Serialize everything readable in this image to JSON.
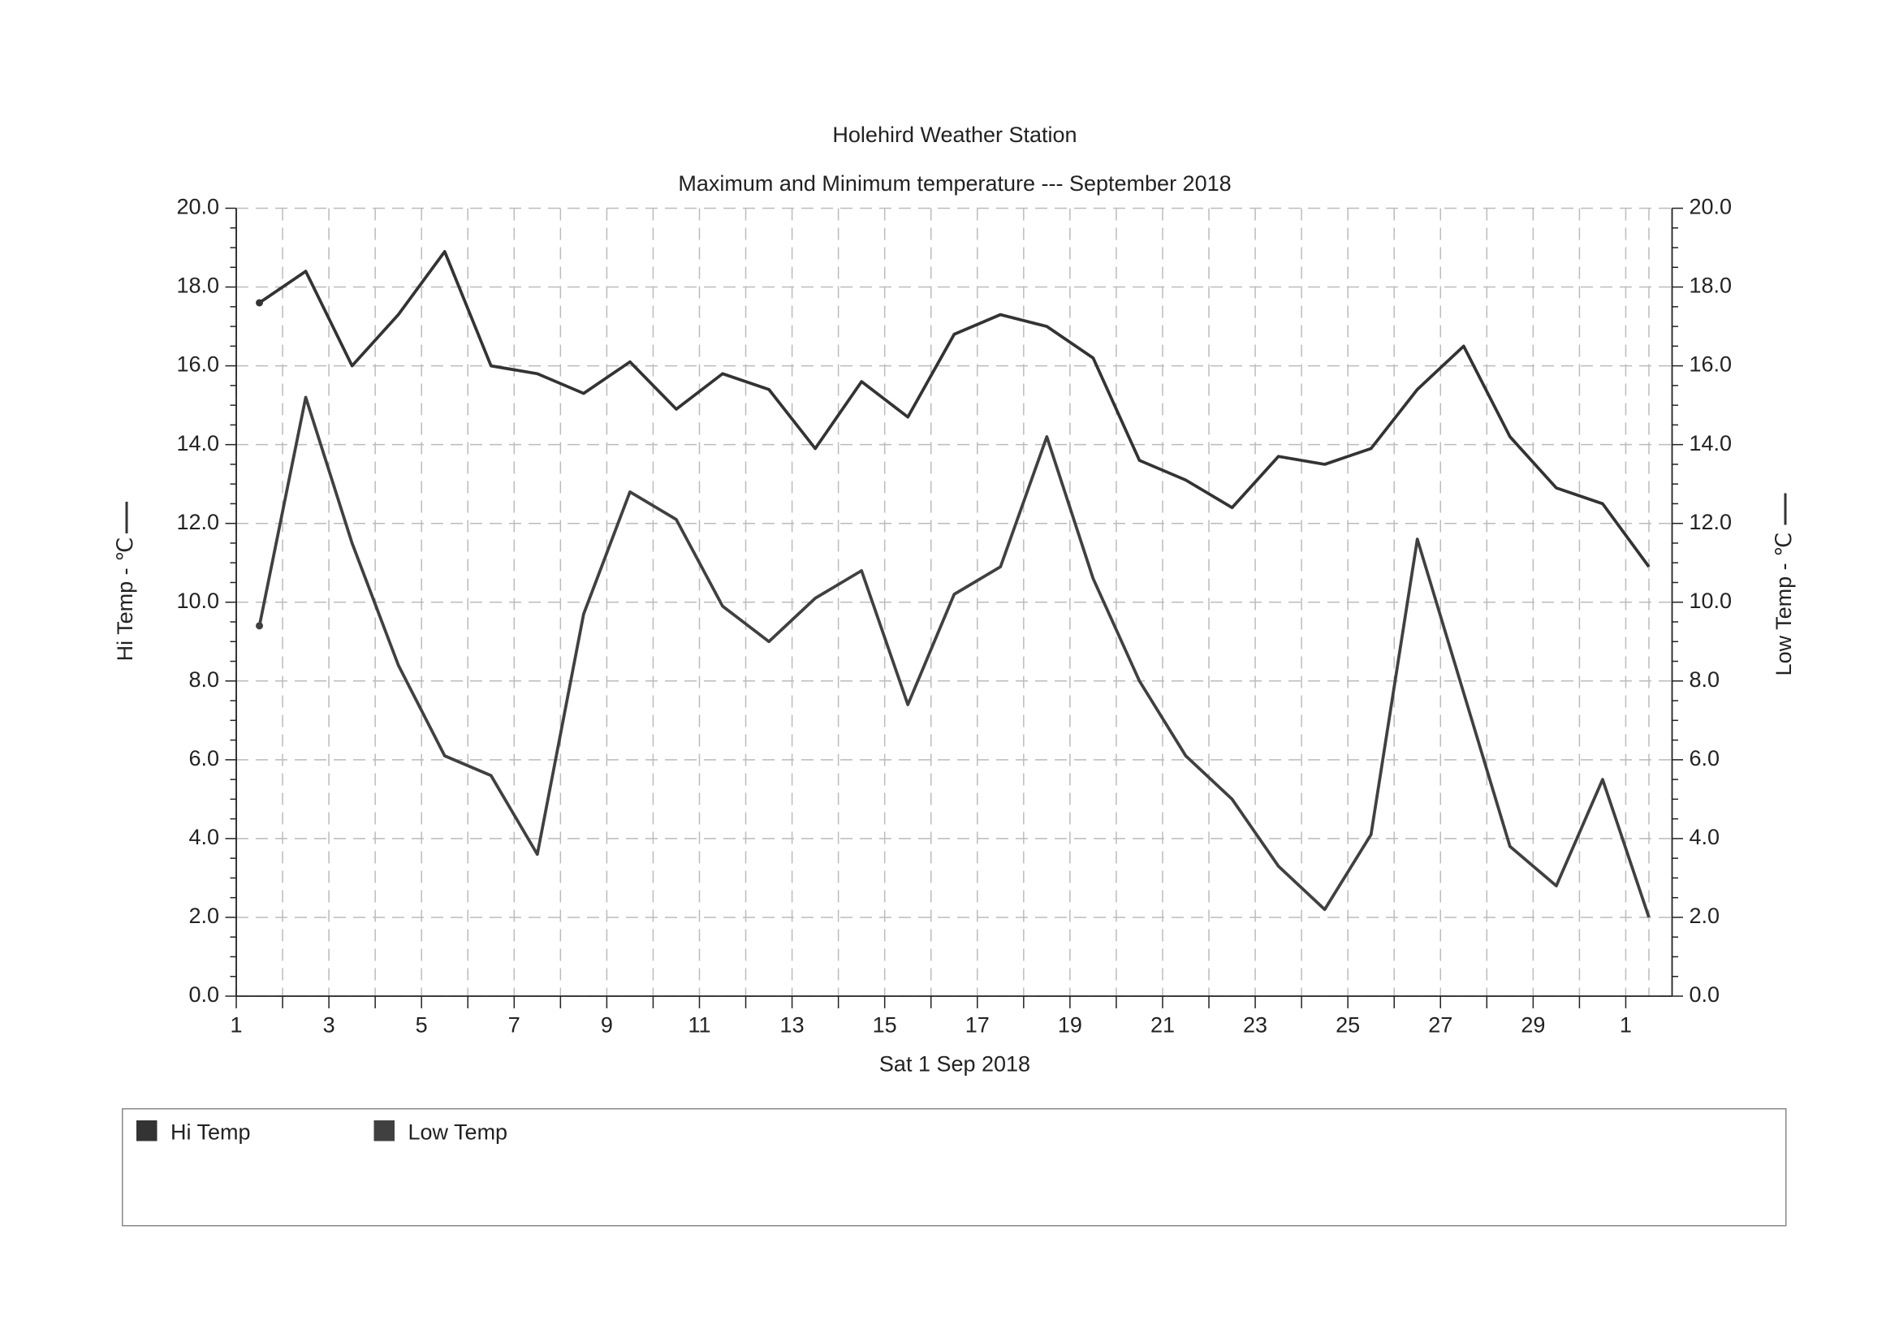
{
  "chart_data": {
    "type": "line",
    "title": "Holehird Weather Station",
    "subtitle": "Maximum and Minimum temperature --- September 2018",
    "x_label": "Sat 1 Sep 2018",
    "y_label": "Hi Temp - ℃",
    "y2_label": "Low Temp - ℃",
    "x": [
      1.5,
      2.5,
      3.5,
      4.5,
      5.5,
      6.5,
      7.5,
      8.5,
      9.5,
      10.5,
      11.5,
      12.5,
      13.5,
      14.5,
      15.5,
      16.5,
      17.5,
      18.5,
      19.5,
      20.5,
      21.5,
      22.5,
      23.5,
      24.5,
      25.5,
      26.5,
      27.5,
      28.5,
      29.5,
      30.5,
      31.5
    ],
    "xlim": [
      1,
      32
    ],
    "xticks": [
      1,
      3,
      5,
      7,
      9,
      11,
      13,
      15,
      17,
      19,
      21,
      23,
      25,
      27,
      29,
      {
        "value": 31,
        "label": "1"
      }
    ],
    "ylim": [
      0,
      20
    ],
    "yticks": [
      {
        "value": 0,
        "label": "0.0"
      },
      {
        "value": 2,
        "label": "2.0"
      },
      {
        "value": 4,
        "label": "4.0"
      },
      {
        "value": 6,
        "label": "6.0"
      },
      {
        "value": 8,
        "label": "8.0"
      },
      {
        "value": 10,
        "label": "10.0"
      },
      {
        "value": 12,
        "label": "12.0"
      },
      {
        "value": 14,
        "label": "14.0"
      },
      {
        "value": 16,
        "label": "16.0"
      },
      {
        "value": 18,
        "label": "18.0"
      },
      {
        "value": 20,
        "label": "20.0"
      }
    ],
    "y2lim": [
      0,
      20
    ],
    "y2ticks": [
      {
        "value": 0,
        "label": "0.0"
      },
      {
        "value": 2,
        "label": "2.0"
      },
      {
        "value": 4,
        "label": "4.0"
      },
      {
        "value": 6,
        "label": "6.0"
      },
      {
        "value": 8,
        "label": "8.0"
      },
      {
        "value": 10,
        "label": "10.0"
      },
      {
        "value": 12,
        "label": "12.0"
      },
      {
        "value": 14,
        "label": "14.0"
      },
      {
        "value": 16,
        "label": "16.0"
      },
      {
        "value": 18,
        "label": "18.0"
      },
      {
        "value": 20,
        "label": "20.0"
      }
    ],
    "grid": true,
    "series": [
      {
        "name": "Hi Temp",
        "color": "#333333",
        "values": [
          17.6,
          18.4,
          16.0,
          17.3,
          18.9,
          16.0,
          15.8,
          15.3,
          16.1,
          14.9,
          15.8,
          15.4,
          13.9,
          15.6,
          14.7,
          16.8,
          17.3,
          17.0,
          16.2,
          13.6,
          13.1,
          12.4,
          13.7,
          13.5,
          13.9,
          15.4,
          16.5,
          14.2,
          12.9,
          12.5,
          10.9
        ]
      },
      {
        "name": "Low Temp",
        "color": "#404040",
        "axis": "y2",
        "values": [
          9.4,
          15.2,
          11.5,
          8.4,
          6.1,
          5.6,
          3.6,
          9.7,
          12.8,
          12.1,
          9.9,
          9.0,
          10.1,
          10.8,
          7.4,
          10.2,
          10.9,
          14.2,
          10.6,
          8.0,
          6.1,
          5.0,
          3.3,
          2.2,
          4.1,
          11.6,
          7.7,
          3.8,
          2.8,
          5.5,
          2.0
        ]
      }
    ]
  }
}
